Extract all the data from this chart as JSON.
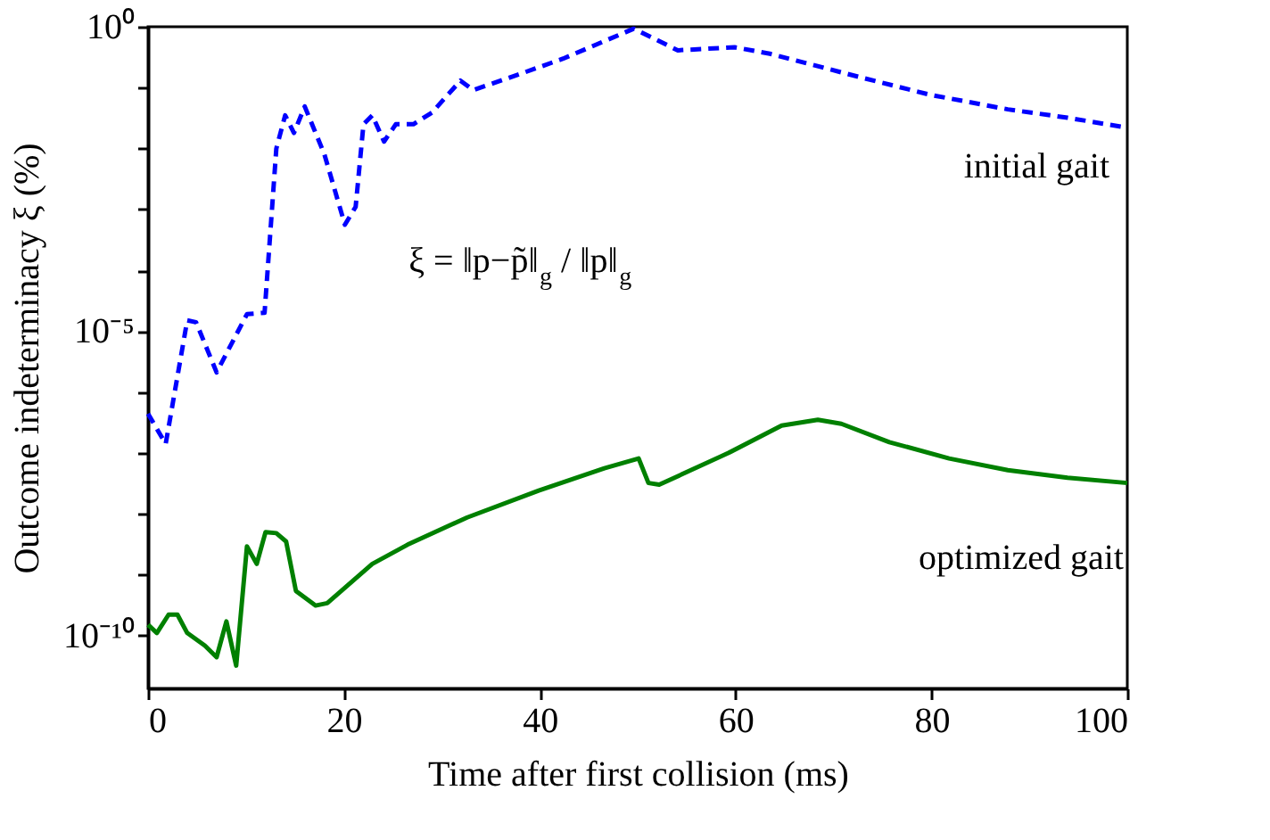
{
  "chart_data": {
    "type": "line",
    "xlabel": "Time after first collision (ms)",
    "ylabel": "Outcome indeterminacy ξ (%)",
    "log": "y",
    "xlim": [
      0,
      100
    ],
    "xticks": [
      0,
      20,
      40,
      60,
      80,
      100
    ],
    "ylim": [
      1.35e-11,
      1
    ],
    "yticks": [
      {
        "value": 1e-10,
        "label": "10⁻¹⁰"
      },
      {
        "value": 1e-09,
        "label": null
      },
      {
        "value": 1e-08,
        "label": null
      },
      {
        "value": 1e-07,
        "label": null
      },
      {
        "value": 1e-06,
        "label": null
      },
      {
        "value": 1e-05,
        "label": "10⁻⁵"
      },
      {
        "value": 0.0001,
        "label": null
      },
      {
        "value": 0.001,
        "label": null
      },
      {
        "value": 0.01,
        "label": null
      },
      {
        "value": 0.1,
        "label": null
      },
      {
        "value": 1,
        "label": "10⁰"
      }
    ],
    "grid": false,
    "legend": false,
    "marker": "none",
    "annotations": [
      "ξ = ‖p−p̃‖$_{g}$ / ‖p‖$_{g}$"
    ],
    "series": [
      {
        "name": "initial gait",
        "color": "#0000ff",
        "line_style": "dashed",
        "x": [
          0,
          1.8,
          4.0,
          4.9,
          7.0,
          10.1,
          11.9,
          13.1,
          14.0,
          14.9,
          16.0,
          18.0,
          20.1,
          21.2,
          22.0,
          22.9,
          24.1,
          25.3,
          27.1,
          29.0,
          31.9,
          33.2,
          38.1,
          42.4,
          46.6,
          49.6,
          54.1,
          59.9,
          63.5,
          72.6,
          79.9,
          87.8,
          93.9,
          100
        ],
        "values": [
          4.4e-07,
          1.4e-07,
          1.5e-05,
          1.4e-05,
          2.1e-06,
          1.9e-05,
          2e-05,
          0.01,
          0.035,
          0.018,
          0.049,
          0.0081,
          0.00056,
          0.0011,
          0.025,
          0.035,
          0.013,
          0.025,
          0.025,
          0.039,
          0.13,
          0.091,
          0.17,
          0.3,
          0.58,
          0.93,
          0.41,
          0.46,
          0.36,
          0.15,
          0.076,
          0.044,
          0.032,
          0.022
        ]
      },
      {
        "name": "optimized gait",
        "color": "#008000",
        "line_style": "solid",
        "x": [
          0,
          0.9,
          2.1,
          3.0,
          4.0,
          5.8,
          7.0,
          8.0,
          9.0,
          10.1,
          11.1,
          12.0,
          13.1,
          14.1,
          15.1,
          17.1,
          18.3,
          22.9,
          26.5,
          32.6,
          39.9,
          46.6,
          50.1,
          51.1,
          52.2,
          59.3,
          64.7,
          68.4,
          70.8,
          75.7,
          81.8,
          87.8,
          93.9,
          100
        ],
        "values": [
          1.5e-10,
          1.1e-10,
          2.2e-10,
          2.2e-10,
          1.1e-10,
          6.8e-11,
          4.4e-11,
          1.7e-10,
          3.2e-11,
          2.9e-09,
          1.5e-09,
          5e-09,
          4.8e-09,
          3.5e-09,
          5.4e-10,
          3.1e-10,
          3.4e-10,
          1.5e-09,
          3.1e-09,
          8.7e-09,
          2.4e-08,
          5.6e-08,
          8.1e-08,
          3.2e-08,
          3e-08,
          1e-07,
          2.8e-07,
          3.5e-07,
          3e-07,
          1.5e-07,
          8.1e-08,
          5.2e-08,
          3.9e-08,
          3.2e-08
        ]
      }
    ]
  }
}
